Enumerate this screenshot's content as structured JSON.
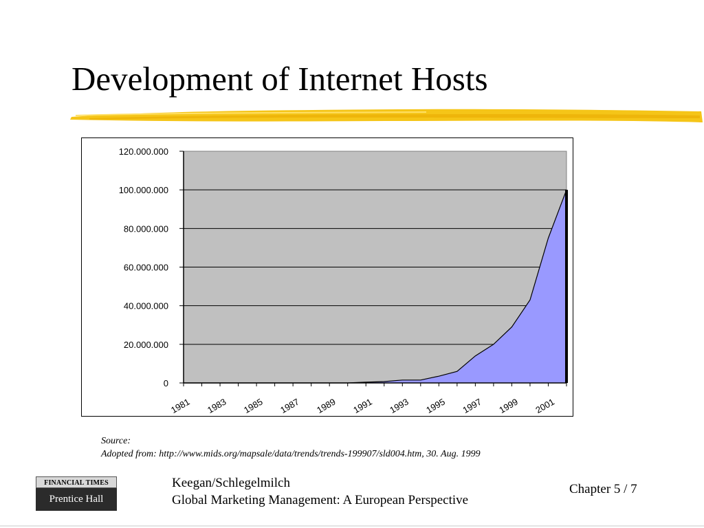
{
  "slide": {
    "title": "Development of Internet Hosts",
    "source_label": "Source:",
    "source_text": "Adopted from: http://www.mids.org/mapsale/data/trends/trends-199907/sld004.htm, 30. Aug. 1999",
    "authors": "Keegan/Schlegelmilch",
    "book_title": "Global Marketing Management: A European Perspective",
    "chapter": "Chapter 5 / 7",
    "logo_top": "FINANCIAL TIMES",
    "logo_bottom": "Prentice Hall"
  },
  "colors": {
    "title_underline": "#f5c518",
    "plot_background": "#c0c0c0",
    "area_fill": "#9999ff",
    "outline": "#000000"
  },
  "chart_data": {
    "type": "area",
    "title": "",
    "xlabel": "",
    "ylabel": "",
    "x": [
      1981,
      1982,
      1983,
      1984,
      1985,
      1986,
      1987,
      1988,
      1989,
      1990,
      1991,
      1992,
      1993,
      1994,
      1995,
      1996,
      1997,
      1998,
      1999,
      2000,
      2001,
      2002
    ],
    "values": [
      0,
      0,
      0,
      0,
      0,
      0,
      0,
      0,
      0,
      0,
      400000,
      700000,
      1500000,
      1500000,
      3500000,
      6000000,
      14000000,
      20000000,
      29000000,
      43000000,
      75000000,
      100000000
    ],
    "x_tick_labels": [
      "1981",
      "1983",
      "1985",
      "1987",
      "1989",
      "1991",
      "1993",
      "1995",
      "1997",
      "1999",
      "2001"
    ],
    "y_tick_labels": [
      "0",
      "20.000.000",
      "40.000.000",
      "60.000.000",
      "80.000.000",
      "100.000.000",
      "120.000.000"
    ],
    "ylim": [
      0,
      120000000
    ],
    "grid": "horizontal",
    "legend": "none"
  }
}
